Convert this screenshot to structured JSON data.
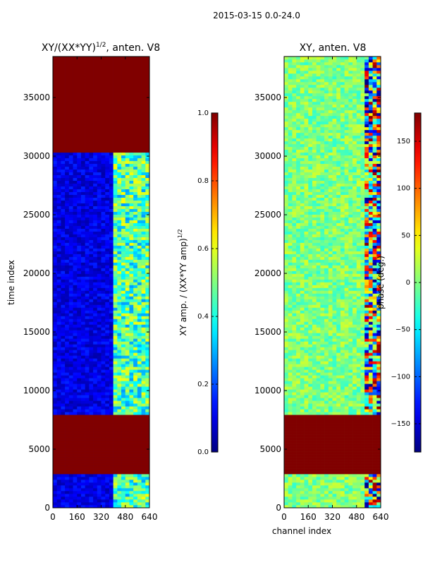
{
  "suptitle": "2015-03-15 0.0-24.0",
  "chart_data": [
    {
      "type": "heatmap",
      "title_main": "XY/(XX*YY)",
      "title_exp": "1/2",
      "title_suffix": ", anten. V8",
      "xlabel": "",
      "ylabel": "time index",
      "xlim": [
        0,
        640
      ],
      "ylim": [
        0,
        38500
      ],
      "xticks": [
        0,
        160,
        320,
        480,
        640
      ],
      "xtick_labels": [
        "0",
        "160",
        "320",
        "480",
        "640"
      ],
      "yticks": [
        0,
        5000,
        10000,
        15000,
        20000,
        25000,
        30000,
        35000
      ],
      "ytick_labels": [
        "0",
        "5000",
        "10000",
        "15000",
        "20000",
        "25000",
        "30000",
        "35000"
      ],
      "colormap": "jet",
      "colorbar": {
        "label_main": "XY amp. / (XX*YY amp)",
        "label_exp": "1/2",
        "min": 0.0,
        "max": 1.0,
        "ticks": [
          0.0,
          0.2,
          0.4,
          0.6,
          0.8,
          1.0
        ],
        "tick_labels": [
          "0.0",
          "0.2",
          "0.4",
          "0.6",
          "0.8",
          "1.0"
        ]
      },
      "flagged_blocks": [
        {
          "from": 2800,
          "to": 7800,
          "value": 1.0
        },
        {
          "from": 30200,
          "to": 38500,
          "value": 1.0
        }
      ],
      "bright_channel_range": [
        400,
        640
      ],
      "background_value": 0.1,
      "bright_value": 0.45
    },
    {
      "type": "heatmap",
      "title": "XY, anten. V8",
      "xlabel": "channel index",
      "ylabel": "",
      "xlim": [
        0,
        640
      ],
      "ylim": [
        0,
        38500
      ],
      "xticks": [
        0,
        160,
        320,
        480,
        640
      ],
      "xtick_labels": [
        "0",
        "160",
        "320",
        "480",
        "640"
      ],
      "yticks": [
        0,
        5000,
        10000,
        15000,
        20000,
        25000,
        30000,
        35000
      ],
      "ytick_labels": [
        "0",
        "5000",
        "10000",
        "15000",
        "20000",
        "25000",
        "30000",
        "35000"
      ],
      "colormap": "jet",
      "colorbar": {
        "label": "phase (deg.)",
        "min": -180,
        "max": 180,
        "ticks": [
          -150,
          -100,
          -50,
          0,
          50,
          100,
          150
        ],
        "tick_labels": [
          "−150",
          "−100",
          "−50",
          "0",
          "50",
          "100",
          "150"
        ]
      },
      "flagged_blocks": [
        {
          "from": 2800,
          "to": 7800,
          "value": 180
        }
      ],
      "noisy_channel_range": [
        520,
        640
      ],
      "background_value": 0
    }
  ]
}
